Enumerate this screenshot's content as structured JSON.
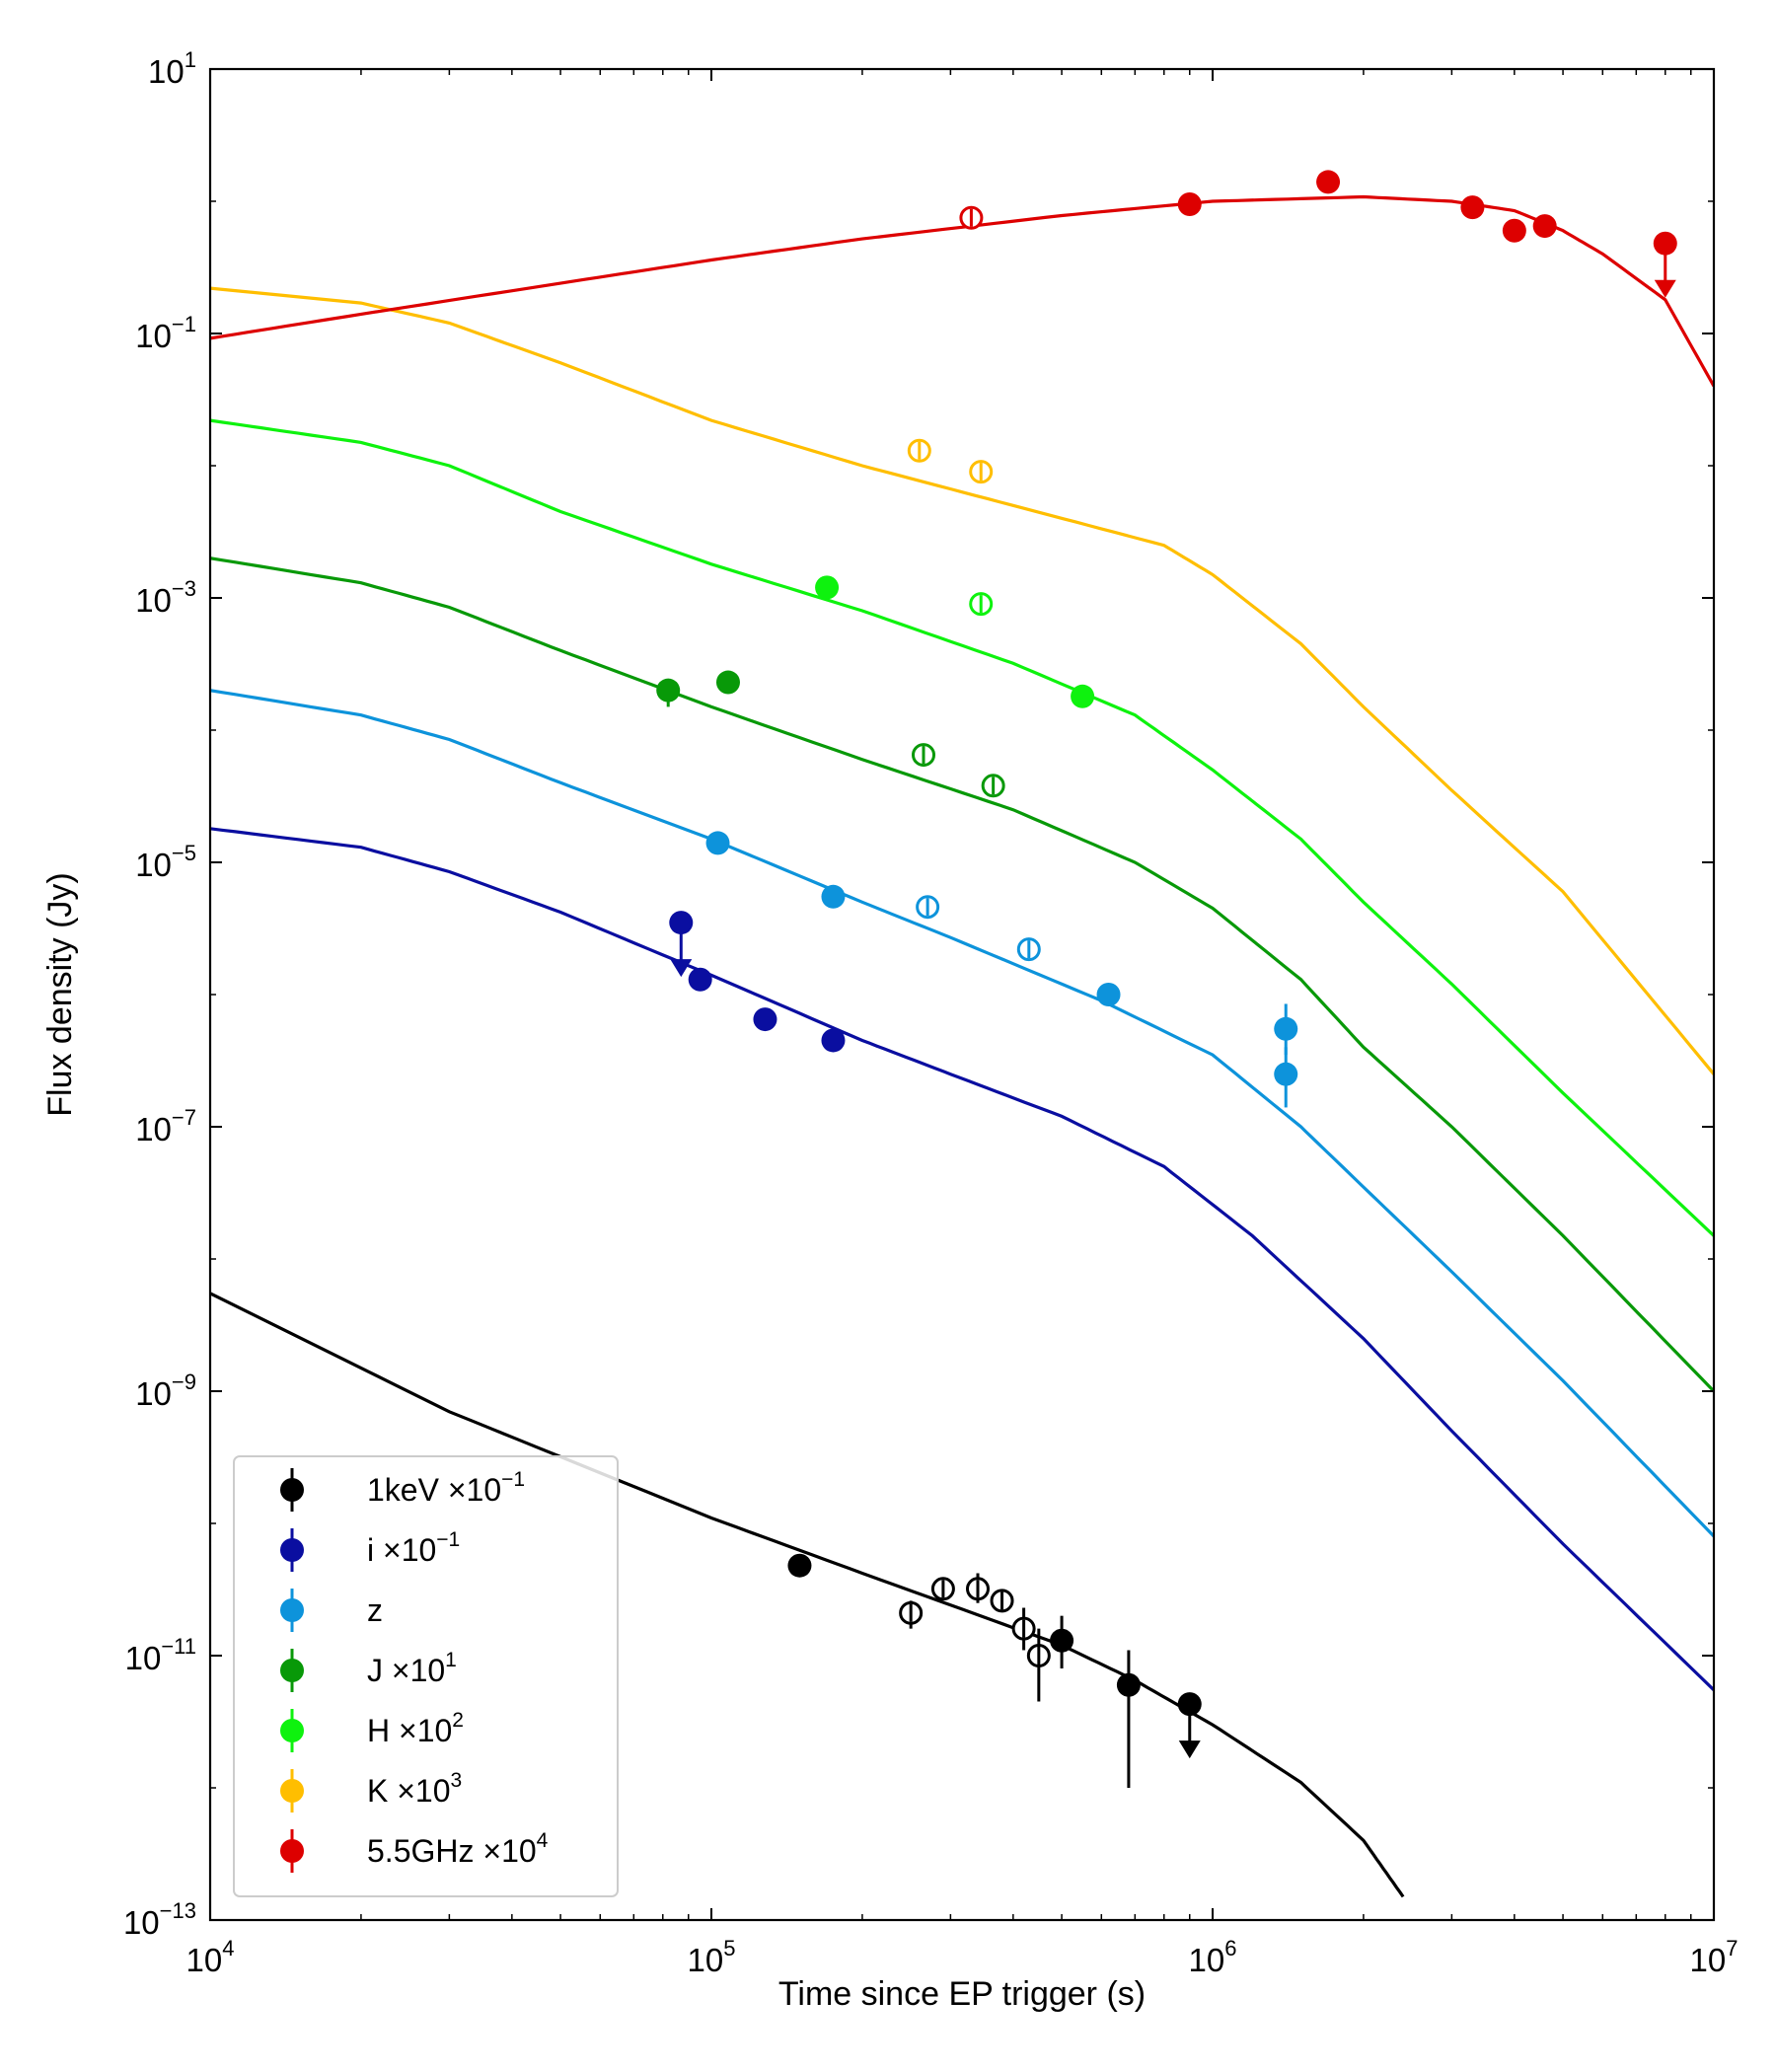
{
  "chart_data": {
    "type": "scatter",
    "xscale": "log",
    "yscale": "log",
    "xlabel": "Time since EP trigger (s)",
    "ylabel": "Flux density (Jy)",
    "xlim": [
      10000,
      10000000
    ],
    "ylim": [
      1e-13,
      10
    ],
    "x_ticks": [
      {
        "value": 10000,
        "base": "10",
        "exp": "4"
      },
      {
        "value": 100000,
        "base": "10",
        "exp": "5"
      },
      {
        "value": 1000000,
        "base": "10",
        "exp": "6"
      },
      {
        "value": 10000000,
        "base": "10",
        "exp": "7"
      }
    ],
    "y_ticks": [
      {
        "value": 10,
        "base": "10",
        "exp": "1"
      },
      {
        "value": 0.1,
        "base": "10",
        "exp": "−1"
      },
      {
        "value": 0.001,
        "base": "10",
        "exp": "−3"
      },
      {
        "value": 1e-05,
        "base": "10",
        "exp": "−5"
      },
      {
        "value": 1e-07,
        "base": "10",
        "exp": "−7"
      },
      {
        "value": 1e-09,
        "base": "10",
        "exp": "−9"
      },
      {
        "value": 1e-11,
        "base": "10",
        "exp": "−11"
      },
      {
        "value": 1e-13,
        "base": "10",
        "exp": "−13"
      }
    ],
    "legend_position": "lower-left",
    "series": [
      {
        "name": "1keV",
        "legend_main": "1keV ",
        "legend_scale": "×10",
        "legend_exp": "−1",
        "color": "#000000",
        "model": [
          [
            10000.0,
            5.5e-09
          ],
          [
            30000.0,
            7e-10
          ],
          [
            100000.0,
            1.1e-10
          ],
          [
            200000.0,
            4.2e-11
          ],
          [
            500000.0,
            1.2e-11
          ],
          [
            700000.0,
            6.5e-12
          ],
          [
            1000000.0,
            3e-12
          ],
          [
            1500000.0,
            1.1e-12
          ],
          [
            2000000.0,
            4e-13
          ],
          [
            2400000.0,
            1.5e-13
          ]
        ],
        "points": [
          {
            "x": 150000,
            "y": 4.8e-11,
            "filled": true
          },
          {
            "x": 250000,
            "y": 2.1e-11,
            "filled": false,
            "err": [
              1.6e-11,
              2.6e-11
            ]
          },
          {
            "x": 290000,
            "y": 3.2e-11,
            "filled": false
          },
          {
            "x": 340000,
            "y": 3.2e-11,
            "filled": false,
            "err": [
              2.5e-11,
              4.2e-11
            ]
          },
          {
            "x": 380000,
            "y": 2.6e-11,
            "filled": false
          },
          {
            "x": 420000,
            "y": 1.6e-11,
            "filled": false,
            "err": [
              1.1e-11,
              2.3e-11
            ]
          },
          {
            "x": 450000,
            "y": 1e-11,
            "filled": false,
            "err": [
              4.5e-12,
              1.6e-11
            ]
          },
          {
            "x": 500000,
            "y": 1.3e-11,
            "filled": true,
            "err": [
              8e-12,
              2e-11
            ]
          },
          {
            "x": 680000,
            "y": 6e-12,
            "filled": true,
            "err": [
              1e-12,
              1.1e-11
            ]
          },
          {
            "x": 900000,
            "y": 4.3e-12,
            "filled": true,
            "upper": true
          }
        ]
      },
      {
        "name": "i",
        "legend_main": "i ",
        "legend_scale": "×10",
        "legend_exp": "−1",
        "color": "#0a0ea0",
        "model": [
          [
            10000.0,
            1.8e-05
          ],
          [
            20000.0,
            1.3e-05
          ],
          [
            30000.0,
            8.5e-06
          ],
          [
            50000.0,
            4.2e-06
          ],
          [
            100000.0,
            1.4e-06
          ],
          [
            200000.0,
            4.5e-07
          ],
          [
            300000.0,
            2.5e-07
          ],
          [
            500000.0,
            1.2e-07
          ],
          [
            800000.0,
            5e-08
          ],
          [
            1200000.0,
            1.5e-08
          ],
          [
            2000000.0,
            2.5e-09
          ],
          [
            3000000.0,
            5e-10
          ],
          [
            5000000.0,
            7e-11
          ],
          [
            10000000.0,
            5.5e-12
          ]
        ],
        "points": [
          {
            "x": 87000,
            "y": 3.5e-06,
            "filled": true,
            "upper": true
          },
          {
            "x": 95000,
            "y": 1.3e-06,
            "filled": true
          },
          {
            "x": 128000,
            "y": 6.5e-07,
            "filled": true
          },
          {
            "x": 175000,
            "y": 4.5e-07,
            "filled": true
          }
        ]
      },
      {
        "name": "z",
        "legend_main": "z",
        "legend_scale": "",
        "legend_exp": "",
        "color": "#0d93db",
        "model": [
          [
            10000.0,
            0.0002
          ],
          [
            20000.0,
            0.00013
          ],
          [
            30000.0,
            8.5e-05
          ],
          [
            50000.0,
            4e-05
          ],
          [
            100000.0,
            1.5e-05
          ],
          [
            200000.0,
            5e-06
          ],
          [
            300000.0,
            2.7e-06
          ],
          [
            600000.0,
            9e-07
          ],
          [
            1000000.0,
            3.5e-07
          ],
          [
            1500000.0,
            1e-07
          ],
          [
            2000000.0,
            3.5e-08
          ],
          [
            3000000.0,
            8e-09
          ],
          [
            5000000.0,
            1.2e-09
          ],
          [
            10000000.0,
            8e-11
          ]
        ],
        "points": [
          {
            "x": 103000,
            "y": 1.4e-05,
            "filled": true
          },
          {
            "x": 175000,
            "y": 5.5e-06,
            "filled": true
          },
          {
            "x": 270000,
            "y": 4.6e-06,
            "filled": false
          },
          {
            "x": 430000,
            "y": 2.2e-06,
            "filled": false
          },
          {
            "x": 620000,
            "y": 1e-06,
            "filled": true
          },
          {
            "x": 1400000,
            "y": 5.5e-07,
            "filled": true,
            "err": [
              3.5e-07,
              8.5e-07
            ]
          },
          {
            "x": 1400000,
            "y": 2.5e-07,
            "filled": true,
            "err": [
              1.4e-07,
              4e-07
            ]
          }
        ]
      },
      {
        "name": "J",
        "legend_main": "J ",
        "legend_scale": "×10",
        "legend_exp": "1",
        "color": "#089908",
        "model": [
          [
            10000.0,
            0.002
          ],
          [
            20000.0,
            0.0013
          ],
          [
            30000.0,
            0.00085
          ],
          [
            50000.0,
            0.0004
          ],
          [
            100000.0,
            0.00015
          ],
          [
            200000.0,
            6e-05
          ],
          [
            400000.0,
            2.5e-05
          ],
          [
            700000.0,
            1e-05
          ],
          [
            1000000.0,
            4.5e-06
          ],
          [
            1500000.0,
            1.3e-06
          ],
          [
            2000000.0,
            4e-07
          ],
          [
            3000000.0,
            1e-07
          ],
          [
            5000000.0,
            1.5e-08
          ],
          [
            10000000.0,
            1e-09
          ]
        ],
        "points": [
          {
            "x": 82000,
            "y": 0.0002,
            "filled": true,
            "err": [
              0.00015,
              0.00024
            ]
          },
          {
            "x": 108000,
            "y": 0.00023,
            "filled": true
          },
          {
            "x": 265000,
            "y": 6.5e-05,
            "filled": false
          },
          {
            "x": 365000,
            "y": 3.8e-05,
            "filled": false
          }
        ]
      },
      {
        "name": "H",
        "legend_main": "H ",
        "legend_scale": "×10",
        "legend_exp": "2",
        "color": "#0ef20e",
        "model": [
          [
            10000.0,
            0.022
          ],
          [
            20000.0,
            0.015
          ],
          [
            30000.0,
            0.01
          ],
          [
            50000.0,
            0.0045
          ],
          [
            100000.0,
            0.0018
          ],
          [
            200000.0,
            0.0008
          ],
          [
            400000.0,
            0.00032
          ],
          [
            700000.0,
            0.00013
          ],
          [
            1000000.0,
            5e-05
          ],
          [
            1500000.0,
            1.5e-05
          ],
          [
            2000000.0,
            5e-06
          ],
          [
            3000000.0,
            1.2e-06
          ],
          [
            5000000.0,
            1.8e-07
          ],
          [
            10000000.0,
            1.5e-08
          ]
        ],
        "points": [
          {
            "x": 170000,
            "y": 0.0012,
            "filled": true
          },
          {
            "x": 345000,
            "y": 0.0009,
            "filled": false
          },
          {
            "x": 550000,
            "y": 0.00018,
            "filled": true
          }
        ]
      },
      {
        "name": "K",
        "legend_main": "K ",
        "legend_scale": "×10",
        "legend_exp": "3",
        "color": "#ffbe00",
        "model": [
          [
            10000.0,
            0.22
          ],
          [
            20000.0,
            0.17
          ],
          [
            30000.0,
            0.12
          ],
          [
            50000.0,
            0.06
          ],
          [
            100000.0,
            0.022
          ],
          [
            200000.0,
            0.01
          ],
          [
            400000.0,
            0.005
          ],
          [
            800000.0,
            0.0025
          ],
          [
            1000000.0,
            0.0015
          ],
          [
            1500000.0,
            0.00045
          ],
          [
            2000000.0,
            0.00015
          ],
          [
            3000000.0,
            3.5e-05
          ],
          [
            5000000.0,
            6e-06
          ],
          [
            10000000.0,
            2.5e-07
          ]
        ],
        "points": [
          {
            "x": 260000,
            "y": 0.013,
            "filled": false
          },
          {
            "x": 345000,
            "y": 0.009,
            "filled": false
          }
        ]
      },
      {
        "name": "5.5GHz",
        "legend_main": "5.5GHz ",
        "legend_scale": "×10",
        "legend_exp": "4",
        "color": "#dd0000",
        "model": [
          [
            10000.0,
            0.092
          ],
          [
            20000.0,
            0.14
          ],
          [
            50000.0,
            0.24
          ],
          [
            100000.0,
            0.36
          ],
          [
            200000.0,
            0.52
          ],
          [
            500000.0,
            0.78
          ],
          [
            1000000.0,
            1.0
          ],
          [
            2000000.0,
            1.08
          ],
          [
            3000000.0,
            1.0
          ],
          [
            4000000.0,
            0.85
          ],
          [
            5000000.0,
            0.6
          ],
          [
            6000000.0,
            0.4
          ],
          [
            8000000.0,
            0.18
          ],
          [
            10000000.0,
            0.04
          ]
        ],
        "points": [
          {
            "x": 330000,
            "y": 0.75,
            "filled": false
          },
          {
            "x": 900000,
            "y": 0.95,
            "filled": true
          },
          {
            "x": 1700000,
            "y": 1.4,
            "filled": true
          },
          {
            "x": 3300000,
            "y": 0.9,
            "filled": true
          },
          {
            "x": 4000000,
            "y": 0.6,
            "filled": true
          },
          {
            "x": 4600000,
            "y": 0.65,
            "filled": true
          },
          {
            "x": 8000000,
            "y": 0.48,
            "filled": true,
            "upper": true
          }
        ]
      }
    ]
  }
}
